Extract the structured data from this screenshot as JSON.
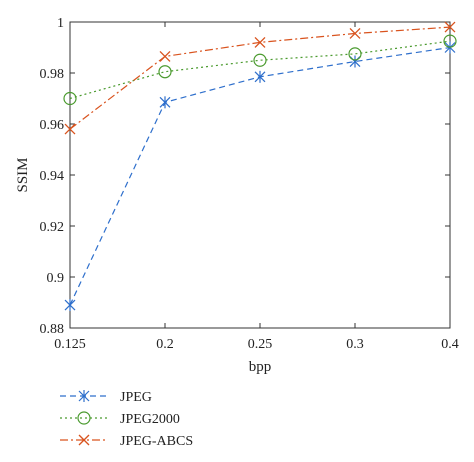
{
  "chart_data": {
    "type": "line",
    "x": [
      0.125,
      0.2,
      0.25,
      0.3,
      0.4
    ],
    "x_tick_labels": [
      "0.125",
      "0.2",
      "0.25",
      "0.3",
      "0.4"
    ],
    "xlabel": "bpp",
    "ylabel": "SSIM",
    "ylim": [
      0.88,
      1.0
    ],
    "y_ticks": [
      0.88,
      0.9,
      0.92,
      0.94,
      0.96,
      0.98,
      1.0
    ],
    "y_tick_labels": [
      "0.88",
      "0.9",
      "0.92",
      "0.94",
      "0.96",
      "0.98",
      "1"
    ],
    "grid": false,
    "legend_position": "below",
    "series": [
      {
        "name": "JPEG",
        "values": [
          0.889,
          0.9685,
          0.9785,
          0.9845,
          0.99
        ],
        "color": "#2e6fcc",
        "dash": "dashed",
        "marker": "asterisk"
      },
      {
        "name": "JPEG2000",
        "values": [
          0.97,
          0.9805,
          0.985,
          0.9875,
          0.9925
        ],
        "color": "#4a9a2e",
        "dash": "dotted",
        "marker": "circle"
      },
      {
        "name": "JPEG-ABCS",
        "values": [
          0.958,
          0.9865,
          0.992,
          0.9955,
          0.998
        ],
        "color": "#d9531e",
        "dash": "dashdot",
        "marker": "x"
      }
    ]
  }
}
